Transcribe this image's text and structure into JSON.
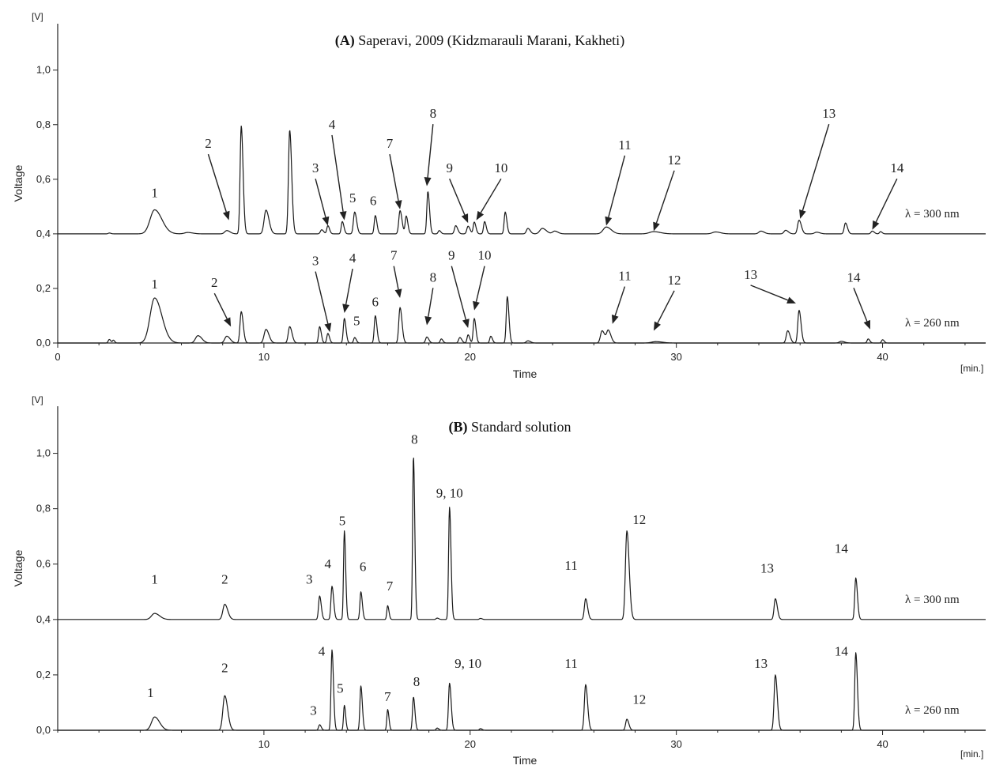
{
  "chart_data": [
    {
      "id": "A",
      "type": "line",
      "title_bold": "(A)",
      "title_rest": " Saperavi, 2009 (Kidzmarauli Marani, Kakheti)",
      "xlabel": "Time",
      "x_unit": "[min.]",
      "ylabel": "Voltage",
      "y_unit": "[V]",
      "xlim": [
        0,
        45
      ],
      "ylim": [
        0,
        1.17
      ],
      "xticks": [
        0,
        10,
        20,
        30,
        40
      ],
      "xtick_labels": [
        "0",
        "10",
        "20",
        "30",
        "40"
      ],
      "yticks": [
        0.0,
        0.2,
        0.4,
        0.6,
        0.8,
        1.0
      ],
      "ytick_labels": [
        "0,0",
        "0,2",
        "0,4",
        "0,6",
        "0,8",
        "1,0"
      ],
      "series": [
        {
          "label": "λ = 300 nm",
          "baseline": 0.4,
          "end_x": 40.6,
          "peaks": [
            [
              2.5,
              0.003,
              0.05
            ],
            [
              4.7,
              0.088,
              0.22
            ],
            [
              6.3,
              0.005,
              0.15
            ],
            [
              8.2,
              0.012,
              0.1
            ],
            [
              8.9,
              0.395,
              0.055
            ],
            [
              10.1,
              0.087,
              0.09
            ],
            [
              11.25,
              0.38,
              0.06
            ],
            [
              12.8,
              0.015,
              0.06
            ],
            [
              13.1,
              0.03,
              0.05
            ],
            [
              13.8,
              0.045,
              0.05
            ],
            [
              14.4,
              0.08,
              0.06
            ],
            [
              15.4,
              0.067,
              0.05
            ],
            [
              16.6,
              0.085,
              0.06
            ],
            [
              16.9,
              0.065,
              0.05
            ],
            [
              17.95,
              0.155,
              0.05
            ],
            [
              18.5,
              0.012,
              0.05
            ],
            [
              19.3,
              0.03,
              0.06
            ],
            [
              19.9,
              0.028,
              0.06
            ],
            [
              20.2,
              0.043,
              0.05
            ],
            [
              20.7,
              0.045,
              0.05
            ],
            [
              21.7,
              0.08,
              0.05
            ],
            [
              22.8,
              0.02,
              0.07
            ],
            [
              23.5,
              0.02,
              0.12
            ],
            [
              24.1,
              0.01,
              0.1
            ],
            [
              26.6,
              0.025,
              0.15
            ],
            [
              28.9,
              0.008,
              0.2
            ],
            [
              31.9,
              0.007,
              0.15
            ],
            [
              34.1,
              0.01,
              0.1
            ],
            [
              35.3,
              0.013,
              0.08
            ],
            [
              35.95,
              0.05,
              0.07
            ],
            [
              36.8,
              0.006,
              0.1
            ],
            [
              38.2,
              0.04,
              0.06
            ],
            [
              39.5,
              0.01,
              0.06
            ],
            [
              39.9,
              0.008,
              0.05
            ]
          ]
        },
        {
          "label": "λ = 260 nm",
          "baseline": 0.0,
          "end_x": 41.8,
          "peaks": [
            [
              2.5,
              0.013,
              0.05
            ],
            [
              2.7,
              0.01,
              0.04
            ],
            [
              4.7,
              0.165,
              0.22
            ],
            [
              6.8,
              0.027,
              0.12
            ],
            [
              8.2,
              0.025,
              0.1
            ],
            [
              8.9,
              0.115,
              0.06
            ],
            [
              10.1,
              0.05,
              0.09
            ],
            [
              11.25,
              0.06,
              0.07
            ],
            [
              12.7,
              0.06,
              0.05
            ],
            [
              13.1,
              0.035,
              0.05
            ],
            [
              13.9,
              0.09,
              0.05
            ],
            [
              14.4,
              0.02,
              0.05
            ],
            [
              15.4,
              0.1,
              0.05
            ],
            [
              16.6,
              0.13,
              0.06
            ],
            [
              17.9,
              0.022,
              0.06
            ],
            [
              18.6,
              0.015,
              0.05
            ],
            [
              19.5,
              0.02,
              0.06
            ],
            [
              19.9,
              0.03,
              0.05
            ],
            [
              20.2,
              0.09,
              0.05
            ],
            [
              21.0,
              0.025,
              0.05
            ],
            [
              21.8,
              0.17,
              0.05
            ],
            [
              22.8,
              0.008,
              0.08
            ],
            [
              26.4,
              0.045,
              0.08
            ],
            [
              26.7,
              0.045,
              0.08
            ],
            [
              29.0,
              0.005,
              0.2
            ],
            [
              35.4,
              0.045,
              0.07
            ],
            [
              35.95,
              0.12,
              0.06
            ],
            [
              38.0,
              0.006,
              0.1
            ],
            [
              39.3,
              0.015,
              0.05
            ],
            [
              40.0,
              0.012,
              0.05
            ]
          ]
        }
      ],
      "annotations": [
        {
          "text": "1",
          "x": 4.7,
          "y": 0.535,
          "arrow": null
        },
        {
          "text": "2",
          "x": 7.3,
          "y": 0.715,
          "arrow": [
            8.3,
            0.45
          ]
        },
        {
          "text": "3",
          "x": 12.5,
          "y": 0.625,
          "arrow": [
            13.1,
            0.43
          ]
        },
        {
          "text": "4",
          "x": 13.3,
          "y": 0.785,
          "arrow": [
            13.9,
            0.45
          ]
        },
        {
          "text": "5",
          "x": 14.3,
          "y": 0.515,
          "arrow": null
        },
        {
          "text": "6",
          "x": 15.3,
          "y": 0.505,
          "arrow": null
        },
        {
          "text": "7",
          "x": 16.1,
          "y": 0.715,
          "arrow": [
            16.6,
            0.49
          ]
        },
        {
          "text": "8",
          "x": 18.2,
          "y": 0.825,
          "arrow": [
            17.9,
            0.575
          ]
        },
        {
          "text": "9",
          "x": 19.0,
          "y": 0.625,
          "arrow": [
            19.9,
            0.44
          ]
        },
        {
          "text": "10",
          "x": 21.5,
          "y": 0.625,
          "arrow": [
            20.3,
            0.45
          ]
        },
        {
          "text": "11",
          "x": 27.5,
          "y": 0.71,
          "arrow": [
            26.6,
            0.43
          ]
        },
        {
          "text": "12",
          "x": 29.9,
          "y": 0.655,
          "arrow": [
            28.9,
            0.41
          ]
        },
        {
          "text": "13",
          "x": 37.4,
          "y": 0.825,
          "arrow": [
            36.0,
            0.455
          ]
        },
        {
          "text": "14",
          "x": 40.7,
          "y": 0.625,
          "arrow": [
            39.5,
            0.415
          ]
        },
        {
          "text": "1",
          "x": 4.7,
          "y": 0.2,
          "arrow": null
        },
        {
          "text": "2",
          "x": 7.6,
          "y": 0.205,
          "arrow": [
            8.4,
            0.06
          ]
        },
        {
          "text": "3",
          "x": 12.5,
          "y": 0.285,
          "arrow": [
            13.2,
            0.04
          ]
        },
        {
          "text": "4",
          "x": 14.3,
          "y": 0.295,
          "arrow": [
            13.9,
            0.11
          ]
        },
        {
          "text": "5",
          "x": 14.5,
          "y": 0.065,
          "arrow": null
        },
        {
          "text": "6",
          "x": 15.4,
          "y": 0.135,
          "arrow": null
        },
        {
          "text": "7",
          "x": 16.3,
          "y": 0.305,
          "arrow": [
            16.6,
            0.165
          ]
        },
        {
          "text": "8",
          "x": 18.2,
          "y": 0.225,
          "arrow": [
            17.9,
            0.065
          ]
        },
        {
          "text": "9",
          "x": 19.1,
          "y": 0.305,
          "arrow": [
            19.9,
            0.055
          ]
        },
        {
          "text": "10",
          "x": 20.7,
          "y": 0.305,
          "arrow": [
            20.2,
            0.12
          ]
        },
        {
          "text": "11",
          "x": 27.5,
          "y": 0.23,
          "arrow": [
            26.9,
            0.07
          ]
        },
        {
          "text": "12",
          "x": 29.9,
          "y": 0.215,
          "arrow": [
            28.9,
            0.045
          ]
        },
        {
          "text": "13",
          "x": 33.6,
          "y": 0.235,
          "arrow": [
            35.8,
            0.145
          ]
        },
        {
          "text": "14",
          "x": 38.6,
          "y": 0.225,
          "arrow": [
            39.4,
            0.05
          ]
        }
      ]
    },
    {
      "id": "B",
      "type": "line",
      "title_bold": "(B)",
      "title_rest": " Standard solution",
      "xlabel": "Time",
      "x_unit": "[min.]",
      "ylabel": "Voltage",
      "y_unit": "[V]",
      "xlim": [
        0,
        45
      ],
      "ylim": [
        0,
        1.17
      ],
      "xticks": [
        10,
        20,
        30,
        40
      ],
      "xtick_labels": [
        "10",
        "20",
        "30",
        "40"
      ],
      "yticks": [
        0.0,
        0.2,
        0.4,
        0.6,
        0.8,
        1.0
      ],
      "ytick_labels": [
        "0,0",
        "0,2",
        "0,4",
        "0,6",
        "0,8",
        "1,0"
      ],
      "series": [
        {
          "label": "λ = 300 nm",
          "baseline": 0.4,
          "end_x": 45,
          "peaks": [
            [
              4.7,
              0.022,
              0.15
            ],
            [
              8.1,
              0.055,
              0.09
            ],
            [
              12.7,
              0.085,
              0.05
            ],
            [
              13.3,
              0.12,
              0.05
            ],
            [
              13.9,
              0.32,
              0.04
            ],
            [
              14.7,
              0.1,
              0.045
            ],
            [
              16.0,
              0.05,
              0.04
            ],
            [
              17.25,
              0.59,
              0.04
            ],
            [
              18.4,
              0.005,
              0.05
            ],
            [
              19.0,
              0.405,
              0.045
            ],
            [
              20.5,
              0.004,
              0.05
            ],
            [
              25.6,
              0.075,
              0.06
            ],
            [
              27.6,
              0.32,
              0.07
            ],
            [
              34.8,
              0.075,
              0.06
            ],
            [
              38.7,
              0.15,
              0.05
            ]
          ]
        },
        {
          "label": "λ = 260 nm",
          "baseline": 0.0,
          "end_x": 45,
          "peaks": [
            [
              4.7,
              0.048,
              0.15
            ],
            [
              8.1,
              0.125,
              0.09
            ],
            [
              12.7,
              0.02,
              0.05
            ],
            [
              13.3,
              0.29,
              0.045
            ],
            [
              13.9,
              0.09,
              0.04
            ],
            [
              14.7,
              0.16,
              0.045
            ],
            [
              16.0,
              0.075,
              0.04
            ],
            [
              17.25,
              0.12,
              0.045
            ],
            [
              18.4,
              0.008,
              0.05
            ],
            [
              19.0,
              0.17,
              0.05
            ],
            [
              20.5,
              0.006,
              0.05
            ],
            [
              25.6,
              0.165,
              0.06
            ],
            [
              27.6,
              0.04,
              0.06
            ],
            [
              34.8,
              0.2,
              0.06
            ],
            [
              38.7,
              0.28,
              0.05
            ]
          ]
        }
      ],
      "annotations": [
        {
          "text": "1",
          "x": 4.7,
          "y": 0.53,
          "arrow": null
        },
        {
          "text": "2",
          "x": 8.1,
          "y": 0.53,
          "arrow": null
        },
        {
          "text": "3",
          "x": 12.2,
          "y": 0.53,
          "arrow": null
        },
        {
          "text": "4",
          "x": 13.1,
          "y": 0.585,
          "arrow": null
        },
        {
          "text": "5",
          "x": 13.8,
          "y": 0.74,
          "arrow": null
        },
        {
          "text": "6",
          "x": 14.8,
          "y": 0.575,
          "arrow": null
        },
        {
          "text": "7",
          "x": 16.1,
          "y": 0.505,
          "arrow": null
        },
        {
          "text": "8",
          "x": 17.3,
          "y": 1.035,
          "arrow": null
        },
        {
          "text": "9, 10",
          "x": 19.0,
          "y": 0.84,
          "arrow": null
        },
        {
          "text": "11",
          "x": 24.9,
          "y": 0.58,
          "arrow": null
        },
        {
          "text": "12",
          "x": 28.2,
          "y": 0.745,
          "arrow": null
        },
        {
          "text": "13",
          "x": 34.4,
          "y": 0.57,
          "arrow": null
        },
        {
          "text": "14",
          "x": 38.0,
          "y": 0.64,
          "arrow": null
        },
        {
          "text": "1",
          "x": 4.5,
          "y": 0.12,
          "arrow": null
        },
        {
          "text": "2",
          "x": 8.1,
          "y": 0.21,
          "arrow": null
        },
        {
          "text": "3",
          "x": 12.4,
          "y": 0.055,
          "arrow": null
        },
        {
          "text": "4",
          "x": 12.8,
          "y": 0.27,
          "arrow": null
        },
        {
          "text": "5",
          "x": 13.7,
          "y": 0.135,
          "arrow": null
        },
        {
          "text": "7",
          "x": 16.0,
          "y": 0.105,
          "arrow": null
        },
        {
          "text": "8",
          "x": 17.4,
          "y": 0.16,
          "arrow": null
        },
        {
          "text": "9, 10",
          "x": 19.9,
          "y": 0.225,
          "arrow": null
        },
        {
          "text": "11",
          "x": 24.9,
          "y": 0.225,
          "arrow": null
        },
        {
          "text": "12",
          "x": 28.2,
          "y": 0.095,
          "arrow": null
        },
        {
          "text": "13",
          "x": 34.1,
          "y": 0.225,
          "arrow": null
        },
        {
          "text": "14",
          "x": 38.0,
          "y": 0.27,
          "arrow": null
        }
      ]
    }
  ]
}
